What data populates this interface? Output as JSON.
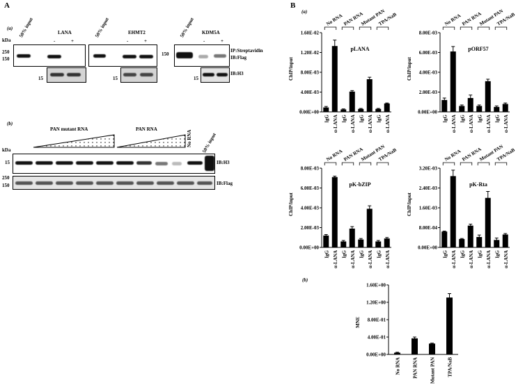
{
  "panelA": {
    "label": "A",
    "sub_a": "(a)",
    "sub_b": "(b)",
    "kda": "kDa",
    "input_label": "50% input",
    "lana": "LANA",
    "ehmt2": "EHMT2",
    "kdm5a": "KDM5A",
    "minus": "-",
    "plus": "+",
    "m250": "250",
    "m150": "150",
    "m15": "15",
    "ip_streptavidin": "IP:Streptavidin",
    "ib_flag": "IB:Flag",
    "ib_h3": "IB:H3",
    "pan_mutant_rna": "PAN mutant RNA",
    "pan_rna": "PAN RNA",
    "no_rna": "No RNA",
    "ib_h3_b": "IB:H3",
    "ib_flag_b": "IB:Flag"
  },
  "panelB": {
    "label": "B",
    "sub_a": "(a)",
    "sub_b": "(b)",
    "groups": [
      "No RNA",
      "PAN RNA",
      "Mutant PAN",
      "TPA/NaB"
    ],
    "x_labels": [
      "IgG",
      "α-LANA",
      "IgG",
      "α-LANA",
      "IgG",
      "α-LANA",
      "IgG",
      "α-LANA"
    ],
    "ylabel": "ChIP/input",
    "mne_ylabel": "MNE"
  },
  "chart_data": [
    {
      "type": "bar",
      "title": "pLANA",
      "ylabel": "ChIP/input",
      "categories": [
        "IgG",
        "α-LANA",
        "IgG",
        "α-LANA",
        "IgG",
        "α-LANA",
        "IgG",
        "α-LANA"
      ],
      "values": [
        0.0009,
        0.0133,
        0.0005,
        0.0041,
        0.0006,
        0.0066,
        0.0006,
        0.0017
      ],
      "errors": [
        0.0002,
        0.0012,
        0.0001,
        0.0002,
        0.0001,
        0.0004,
        0.0001,
        0.0001
      ],
      "ylim": [
        0,
        0.016
      ],
      "yticks": [
        "0.00E+00",
        "4.00E-03",
        "8.00E-03",
        "1.20E-02",
        "1.60E-02"
      ]
    },
    {
      "type": "bar",
      "title": "pORF57",
      "ylabel": "ChIP/input",
      "categories": [
        "IgG",
        "α-LANA",
        "IgG",
        "α-LANA",
        "IgG",
        "α-LANA",
        "IgG",
        "α-LANA"
      ],
      "values": [
        0.0012,
        0.0061,
        0.0006,
        0.0014,
        0.0006,
        0.0031,
        0.0005,
        0.0008
      ],
      "errors": [
        0.0002,
        0.0005,
        0.0001,
        0.0003,
        0.0001,
        0.0002,
        0.0001,
        0.0001
      ],
      "ylim": [
        0,
        0.008
      ],
      "yticks": [
        "0.00E+00",
        "2.00E-03",
        "4.00E-03",
        "6.00E-03",
        "8.00E-03"
      ]
    },
    {
      "type": "bar",
      "title": "pK-bZIP",
      "ylabel": "ChIP/input",
      "categories": [
        "IgG",
        "α-LANA",
        "IgG",
        "α-LANA",
        "IgG",
        "α-LANA",
        "IgG",
        "α-LANA"
      ],
      "values": [
        0.0012,
        0.0071,
        0.0006,
        0.0019,
        0.0008,
        0.0039,
        0.0006,
        0.0009
      ],
      "errors": [
        0.0001,
        0.0001,
        0.0001,
        0.0002,
        0.0001,
        0.0003,
        0.0001,
        0.0001
      ],
      "ylim": [
        0,
        0.008
      ],
      "yticks": [
        "0.00E+00",
        "2.00E-03",
        "4.00E-03",
        "6.00E-03",
        "8.00E-03"
      ]
    },
    {
      "type": "bar",
      "title": "pK-Rta",
      "ylabel": "ChIP/input",
      "categories": [
        "IgG",
        "α-LANA",
        "IgG",
        "α-LANA",
        "IgG",
        "α-LANA",
        "IgG",
        "α-LANA"
      ],
      "values": [
        0.00064,
        0.00288,
        0.00034,
        0.00088,
        0.00042,
        0.002,
        0.0003,
        0.00052
      ],
      "errors": [
        2e-05,
        0.00024,
        2e-05,
        6e-05,
        8e-05,
        0.00026,
        8e-05,
        4e-05
      ],
      "ylim": [
        0,
        0.0032
      ],
      "yticks": [
        "0.00E+00",
        "8.00E-04",
        "1.60E-03",
        "2.40E-03",
        "3.20E-03"
      ]
    },
    {
      "type": "bar",
      "title": "",
      "ylabel": "MNE",
      "categories": [
        "No RNA",
        "PAN RNA",
        "Mutant PAN",
        "TPA/NaB"
      ],
      "values": [
        0.04,
        0.37,
        0.25,
        1.31
      ],
      "errors": [
        0.01,
        0.03,
        0.01,
        0.09
      ],
      "ylim": [
        0,
        1.6
      ],
      "yticks": [
        "0.00E+00",
        "4.00E-01",
        "8.00E-01",
        "1.20E+00",
        "1.60E+00"
      ]
    }
  ]
}
